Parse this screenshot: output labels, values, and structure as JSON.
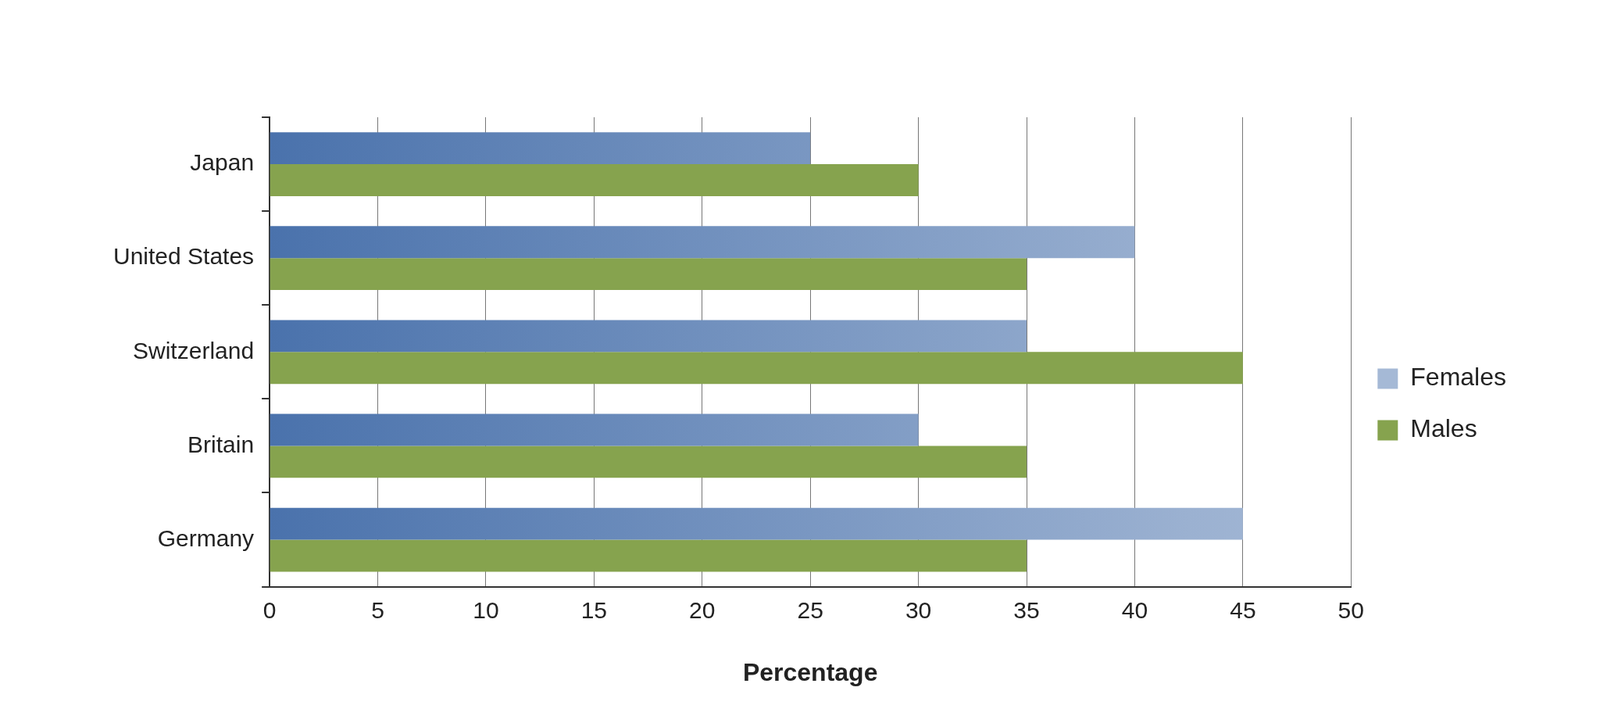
{
  "chart_data": {
    "type": "bar",
    "orientation": "horizontal",
    "x_label": "Percentage",
    "categories": [
      "Japan",
      "United States",
      "Switzerland",
      "Britain",
      "Germany"
    ],
    "series": [
      {
        "name": "Females",
        "color": "#4a72ac",
        "values": [
          25,
          40,
          35,
          30,
          45
        ]
      },
      {
        "name": "Males",
        "color": "#86a34e",
        "values": [
          30,
          35,
          45,
          35,
          35
        ]
      }
    ],
    "xlim": [
      0,
      50
    ],
    "xticks": [
      0,
      5,
      10,
      15,
      20,
      25,
      30,
      35,
      40,
      45,
      50
    ],
    "grid": true,
    "legend": "right"
  }
}
